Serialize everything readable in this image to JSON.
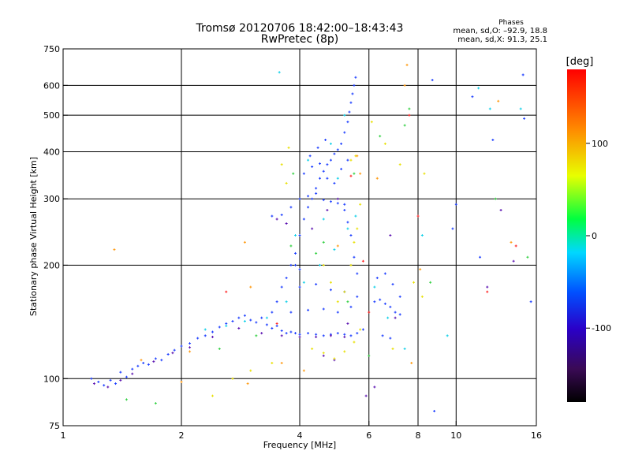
{
  "chart_data": {
    "type": "scatter",
    "title": "Tromsø 20120706 18:42:00–18:43:43",
    "subtitle": "RwPretec (8p)",
    "stats": {
      "heading": "Phases",
      "line1": "mean, sd,O: –92.9, 18.8",
      "line2": "mean, sd,X:  91.3, 25.1"
    },
    "xlabel": "Frequency [MHz]",
    "ylabel": "Stationary phase Virtual Height [km]",
    "x_scale": "log",
    "y_scale": "log",
    "xlim": [
      1,
      16
    ],
    "ylim": [
      75,
      750
    ],
    "x_ticks": [
      1,
      2,
      4,
      6,
      8,
      10,
      16
    ],
    "y_ticks": [
      75,
      100,
      200,
      300,
      400,
      500,
      600,
      750
    ],
    "x_gridlines": [
      2,
      4,
      6,
      8,
      10
    ],
    "y_gridlines": [
      100,
      200,
      300,
      400,
      500,
      600
    ],
    "grid": true,
    "colorbar": {
      "label": "[deg]",
      "range": [
        -180,
        180
      ],
      "ticks": [
        100,
        0,
        -100
      ]
    },
    "series": [
      {
        "color": "blue",
        "points": [
          [
            1.18,
            100
          ],
          [
            1.23,
            98
          ],
          [
            1.27,
            96
          ],
          [
            1.32,
            99
          ],
          [
            1.36,
            97
          ],
          [
            1.4,
            104
          ],
          [
            1.45,
            101
          ],
          [
            1.5,
            106
          ],
          [
            1.55,
            108
          ],
          [
            1.6,
            110
          ],
          [
            1.65,
            109
          ],
          [
            1.72,
            113
          ],
          [
            1.78,
            112
          ],
          [
            1.85,
            116
          ],
          [
            1.92,
            119
          ],
          [
            2.0,
            122
          ],
          [
            2.1,
            124
          ],
          [
            2.2,
            128
          ],
          [
            2.3,
            130
          ],
          [
            2.4,
            133
          ],
          [
            2.5,
            137
          ],
          [
            2.6,
            140
          ],
          [
            2.7,
            142
          ],
          [
            2.8,
            145
          ],
          [
            2.9,
            147
          ],
          [
            3.0,
            143
          ],
          [
            3.1,
            141
          ],
          [
            3.2,
            145
          ],
          [
            3.3,
            139
          ],
          [
            3.4,
            136
          ],
          [
            3.5,
            138
          ],
          [
            3.6,
            134
          ],
          [
            3.7,
            132
          ],
          [
            3.8,
            133
          ],
          [
            3.9,
            132
          ],
          [
            4.0,
            131
          ],
          [
            4.2,
            132
          ],
          [
            4.4,
            131
          ],
          [
            4.6,
            130
          ],
          [
            4.8,
            131
          ],
          [
            5.0,
            132
          ],
          [
            5.2,
            131
          ],
          [
            5.4,
            130
          ],
          [
            5.6,
            132
          ],
          [
            3.4,
            150
          ],
          [
            3.5,
            160
          ],
          [
            3.6,
            175
          ],
          [
            3.7,
            185
          ],
          [
            3.8,
            200
          ],
          [
            3.9,
            215
          ],
          [
            4.0,
            240
          ],
          [
            4.1,
            265
          ],
          [
            4.2,
            285
          ],
          [
            4.3,
            300
          ],
          [
            4.4,
            320
          ],
          [
            4.5,
            340
          ],
          [
            4.6,
            355
          ],
          [
            4.7,
            370
          ],
          [
            4.8,
            380
          ],
          [
            4.9,
            395
          ],
          [
            5.0,
            405
          ],
          [
            5.1,
            420
          ],
          [
            5.2,
            450
          ],
          [
            5.3,
            480
          ],
          [
            5.35,
            510
          ],
          [
            5.4,
            540
          ],
          [
            5.45,
            570
          ],
          [
            5.5,
            600
          ],
          [
            5.55,
            630
          ],
          [
            3.4,
            270
          ],
          [
            3.6,
            272
          ],
          [
            3.8,
            285
          ],
          [
            4.0,
            300
          ],
          [
            4.2,
            305
          ],
          [
            4.4,
            310
          ],
          [
            4.6,
            298
          ],
          [
            4.8,
            295
          ],
          [
            5.0,
            292
          ],
          [
            5.2,
            290
          ],
          [
            3.8,
            150
          ],
          [
            4.2,
            152
          ],
          [
            4.6,
            153
          ],
          [
            5.0,
            150
          ],
          [
            5.4,
            155
          ],
          [
            4.0,
            175
          ],
          [
            4.4,
            178
          ],
          [
            4.8,
            172
          ],
          [
            5.2,
            170
          ],
          [
            5.6,
            165
          ],
          [
            4.1,
            350
          ],
          [
            4.3,
            365
          ],
          [
            4.5,
            372
          ],
          [
            4.7,
            340
          ],
          [
            4.9,
            330
          ],
          [
            5.1,
            360
          ],
          [
            5.3,
            380
          ],
          [
            4.25,
            390
          ],
          [
            4.45,
            410
          ],
          [
            4.65,
            430
          ],
          [
            6.2,
            160
          ],
          [
            6.4,
            162
          ],
          [
            6.6,
            158
          ],
          [
            6.8,
            155
          ],
          [
            7.0,
            150
          ],
          [
            7.2,
            148
          ],
          [
            6.3,
            185
          ],
          [
            6.6,
            190
          ],
          [
            6.9,
            178
          ],
          [
            7.2,
            165
          ],
          [
            6.5,
            130
          ],
          [
            6.8,
            128
          ],
          [
            5.8,
            135
          ],
          [
            5.6,
            190
          ],
          [
            5.5,
            210
          ],
          [
            5.4,
            240
          ],
          [
            5.3,
            260
          ],
          [
            5.2,
            280
          ],
          [
            4.0,
            195
          ],
          [
            3.9,
            200
          ],
          [
            11.0,
            560
          ],
          [
            12.4,
            430
          ],
          [
            14.8,
            640
          ],
          [
            14.9,
            490
          ],
          [
            8.7,
            620
          ],
          [
            10.0,
            290
          ],
          [
            9.8,
            250
          ],
          [
            11.5,
            210
          ],
          [
            15.5,
            160
          ],
          [
            8.8,
            82
          ]
        ]
      },
      {
        "color": "purple",
        "points": [
          [
            1.2,
            97
          ],
          [
            1.3,
            95
          ],
          [
            1.4,
            99
          ],
          [
            1.5,
            103
          ],
          [
            1.7,
            111
          ],
          [
            1.9,
            117
          ],
          [
            2.1,
            121
          ],
          [
            2.4,
            129
          ],
          [
            2.8,
            136
          ],
          [
            3.2,
            132
          ],
          [
            3.6,
            130
          ],
          [
            4.0,
            129
          ],
          [
            4.4,
            129
          ],
          [
            4.8,
            130
          ],
          [
            5.2,
            129
          ],
          [
            3.5,
            265
          ],
          [
            3.7,
            258
          ],
          [
            4.3,
            250
          ],
          [
            4.7,
            280
          ],
          [
            5.0,
            300
          ],
          [
            6.8,
            240
          ],
          [
            7.0,
            145
          ],
          [
            13.0,
            280
          ],
          [
            14.0,
            205
          ],
          [
            12.0,
            175
          ],
          [
            5.9,
            90
          ],
          [
            6.2,
            95
          ],
          [
            4.6,
            115
          ],
          [
            4.9,
            112
          ],
          [
            5.3,
            140
          ]
        ]
      },
      {
        "color": "cyan",
        "points": [
          [
            2.3,
            135
          ],
          [
            2.6,
            138
          ],
          [
            2.9,
            142
          ],
          [
            3.3,
            145
          ],
          [
            3.7,
            160
          ],
          [
            4.1,
            180
          ],
          [
            4.5,
            200
          ],
          [
            4.9,
            220
          ],
          [
            5.3,
            250
          ],
          [
            5.55,
            270
          ],
          [
            4.2,
            380
          ],
          [
            4.8,
            420
          ],
          [
            5.2,
            500
          ],
          [
            6.2,
            175
          ],
          [
            6.7,
            145
          ],
          [
            7.4,
            120
          ],
          [
            8.2,
            240
          ],
          [
            9.5,
            130
          ],
          [
            12.2,
            520
          ],
          [
            14.6,
            520
          ],
          [
            11.4,
            590
          ],
          [
            3.55,
            650
          ],
          [
            5.0,
            340
          ],
          [
            4.6,
            265
          ],
          [
            3.9,
            240
          ]
        ]
      },
      {
        "color": "green",
        "points": [
          [
            1.45,
            88
          ],
          [
            1.72,
            86
          ],
          [
            2.5,
            120
          ],
          [
            3.1,
            130
          ],
          [
            3.8,
            225
          ],
          [
            4.4,
            215
          ],
          [
            5.3,
            160
          ],
          [
            5.5,
            350
          ],
          [
            6.4,
            440
          ],
          [
            7.4,
            470
          ],
          [
            7.6,
            520
          ],
          [
            15.2,
            210
          ],
          [
            12.6,
            300
          ],
          [
            8.6,
            180
          ],
          [
            6.0,
            115
          ],
          [
            3.85,
            350
          ],
          [
            4.6,
            230
          ]
        ]
      },
      {
        "color": "yellow",
        "points": [
          [
            3.6,
            370
          ],
          [
            3.7,
            330
          ],
          [
            3.75,
            410
          ],
          [
            4.6,
            200
          ],
          [
            4.8,
            180
          ],
          [
            5.0,
            160
          ],
          [
            5.2,
            170
          ],
          [
            5.4,
            200
          ],
          [
            5.5,
            230
          ],
          [
            5.6,
            250
          ],
          [
            5.7,
            290
          ],
          [
            4.3,
            120
          ],
          [
            4.6,
            117
          ],
          [
            4.9,
            113
          ],
          [
            5.2,
            118
          ],
          [
            5.5,
            125
          ],
          [
            5.7,
            135
          ],
          [
            5.4,
            380
          ],
          [
            5.55,
            390
          ],
          [
            6.1,
            480
          ],
          [
            6.6,
            420
          ],
          [
            7.2,
            370
          ],
          [
            8.3,
            350
          ],
          [
            3.4,
            110
          ],
          [
            3.0,
            105
          ],
          [
            2.7,
            100
          ],
          [
            2.4,
            90
          ],
          [
            7.8,
            180
          ],
          [
            8.2,
            165
          ],
          [
            6.9,
            120
          ]
        ]
      },
      {
        "color": "orange",
        "points": [
          [
            1.35,
            220
          ],
          [
            1.58,
            112
          ],
          [
            2.0,
            98
          ],
          [
            2.1,
            118
          ],
          [
            2.9,
            230
          ],
          [
            2.95,
            97
          ],
          [
            3.0,
            175
          ],
          [
            3.6,
            110
          ],
          [
            4.1,
            105
          ],
          [
            5.0,
            225
          ],
          [
            5.6,
            390
          ],
          [
            5.7,
            350
          ],
          [
            6.3,
            340
          ],
          [
            7.5,
            680
          ],
          [
            7.7,
            110
          ],
          [
            8.1,
            195
          ],
          [
            12.8,
            545
          ],
          [
            13.8,
            230
          ],
          [
            7.4,
            600
          ]
        ]
      },
      {
        "color": "red",
        "points": [
          [
            2.6,
            170
          ],
          [
            3.5,
            140
          ],
          [
            5.4,
            345
          ],
          [
            5.8,
            205
          ],
          [
            7.6,
            500
          ],
          [
            8.0,
            270
          ],
          [
            14.2,
            225
          ],
          [
            12.0,
            170
          ],
          [
            6.0,
            150
          ]
        ]
      }
    ]
  }
}
